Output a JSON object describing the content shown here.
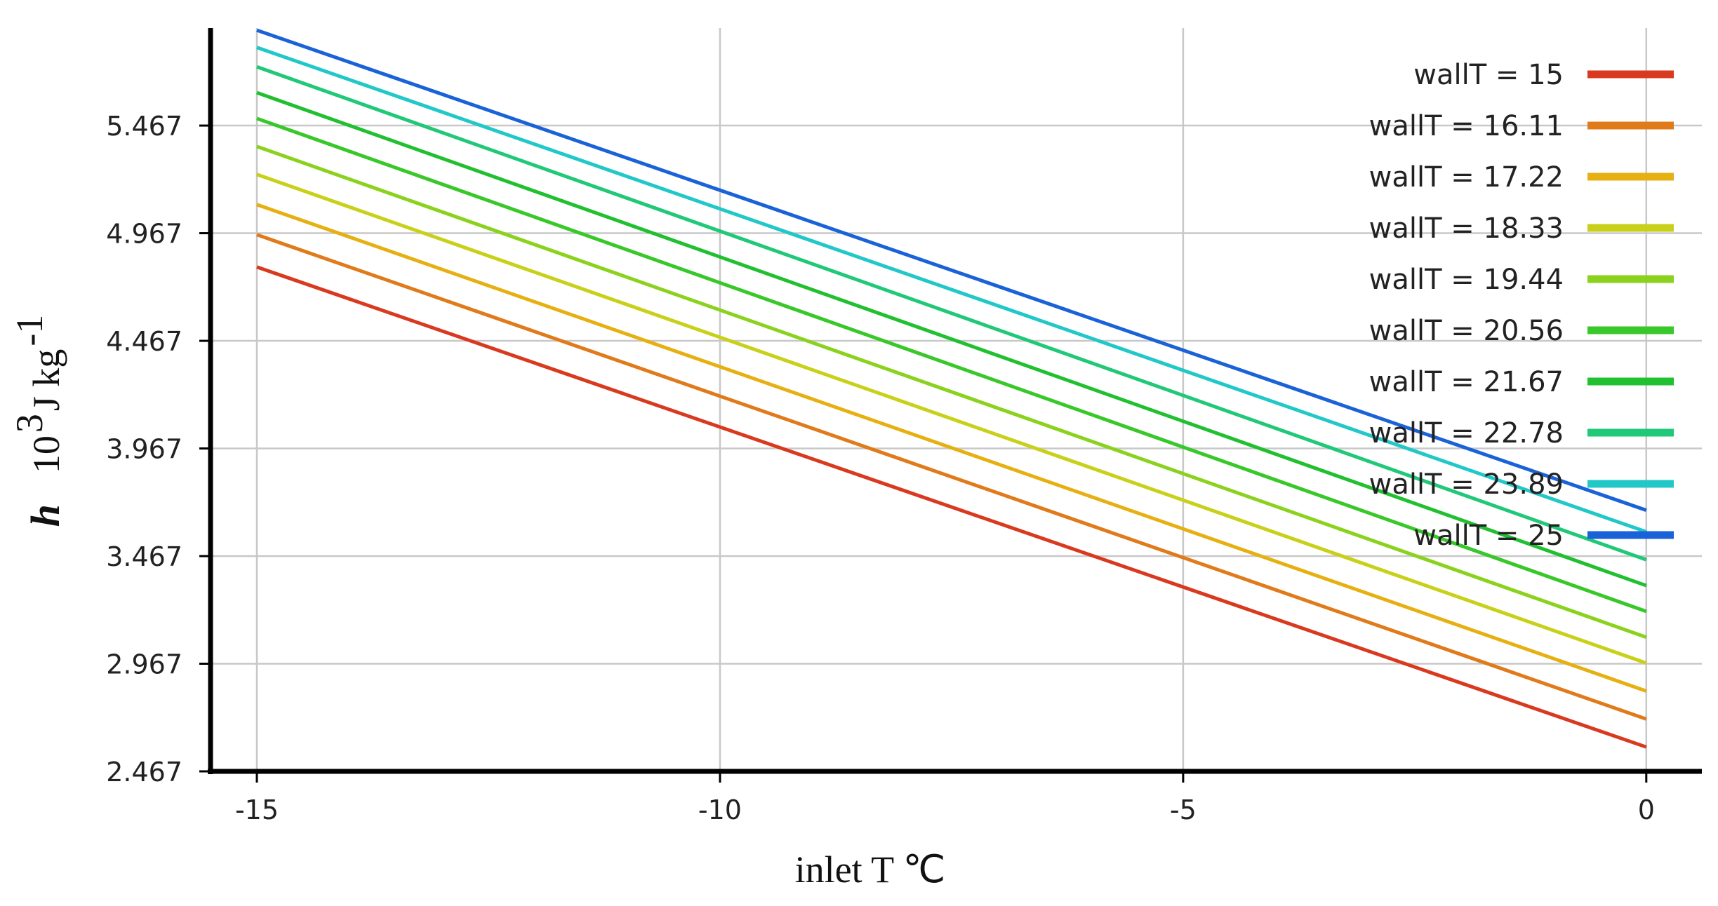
{
  "chart_data": {
    "type": "line",
    "title": "",
    "xlabel": "inlet T ℃",
    "ylabel": {
      "symbol": "h",
      "unit_base": "10",
      "unit_exp": "3",
      "unit_mid": " J kg",
      "unit_exp2": "-1"
    },
    "xlim": [
      -15.5,
      0.6
    ],
    "ylim": [
      2.467,
      5.92
    ],
    "x_ticks": [
      -15,
      -10,
      -5,
      0
    ],
    "x_tick_labels": [
      "-15",
      "-10",
      "-5",
      "0"
    ],
    "y_ticks": [
      2.467,
      2.967,
      3.467,
      3.967,
      4.467,
      4.967,
      5.467
    ],
    "y_tick_labels": [
      "2.467",
      "2.967",
      "3.467",
      "3.967",
      "4.467",
      "4.967",
      "5.467"
    ],
    "grid": true,
    "legend_position": "right",
    "x": [
      -15,
      0
    ],
    "series": [
      {
        "name": "wallT = 15",
        "color": "#d93a1f",
        "values": [
          4.81,
          2.58
        ]
      },
      {
        "name": "wallT = 16.11",
        "color": "#e07a1a",
        "values": [
          4.96,
          2.71
        ]
      },
      {
        "name": "wallT = 17.22",
        "color": "#e6b012",
        "values": [
          5.1,
          2.84
        ]
      },
      {
        "name": "wallT = 18.33",
        "color": "#c9d01a",
        "values": [
          5.24,
          2.97
        ]
      },
      {
        "name": "wallT = 19.44",
        "color": "#8ad21e",
        "values": [
          5.37,
          3.09
        ]
      },
      {
        "name": "wallT = 20.56",
        "color": "#38c82a",
        "values": [
          5.5,
          3.21
        ]
      },
      {
        "name": "wallT = 21.67",
        "color": "#20c030",
        "values": [
          5.62,
          3.33
        ]
      },
      {
        "name": "wallT = 22.78",
        "color": "#20c878",
        "values": [
          5.74,
          3.45
        ]
      },
      {
        "name": "wallT = 23.89",
        "color": "#22c8c8",
        "values": [
          5.83,
          3.58
        ]
      },
      {
        "name": "wallT = 25",
        "color": "#1a62d8",
        "values": [
          5.91,
          3.68
        ]
      }
    ]
  }
}
